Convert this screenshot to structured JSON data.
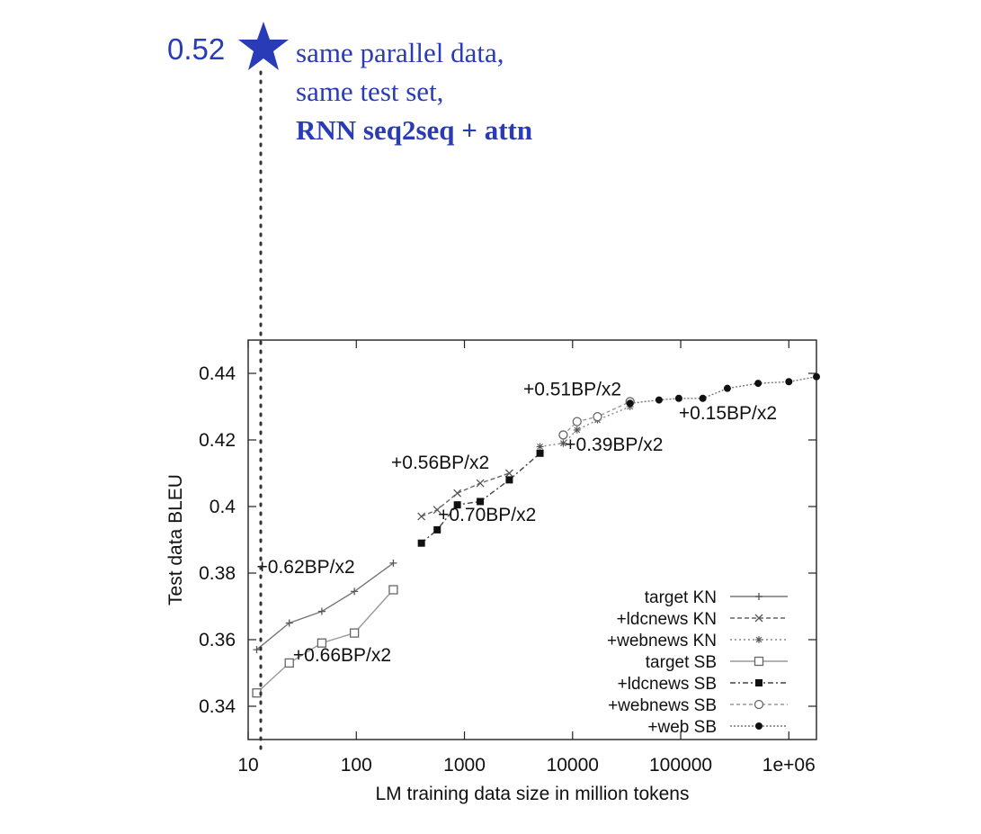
{
  "annotation": {
    "score": "0.52",
    "lines": [
      "same parallel data,",
      "same test set,",
      "RNN seq2seq + attn"
    ],
    "star_color": "#2a3bb8",
    "text_color": "#2a3bb8"
  },
  "chart_data": {
    "type": "line",
    "xlabel": "LM training data size in million tokens",
    "ylabel": "Test data BLEU",
    "xscale": "log",
    "xlim": [
      10,
      1800000
    ],
    "ylim": [
      0.33,
      0.45
    ],
    "xticks": [
      10,
      100,
      1000,
      10000,
      100000,
      1000000
    ],
    "xtick_labels": [
      "10",
      "100",
      "1000",
      "10000",
      "100000",
      "1e+06"
    ],
    "yticks": [
      0.34,
      0.36,
      0.38,
      0.4,
      0.42,
      0.44
    ],
    "ytick_labels": [
      "0.34",
      "0.36",
      "0.38",
      "0.4",
      "0.42",
      "0.44"
    ],
    "grid": false,
    "legend_position": "bottom-right",
    "series": [
      {
        "name": "target KN",
        "marker": "plus",
        "x": [
          12,
          24,
          48,
          96,
          220
        ],
        "y": [
          0.357,
          0.365,
          0.3685,
          0.3745,
          0.383
        ]
      },
      {
        "name": "+ldcnews KN",
        "marker": "cross",
        "x": [
          400,
          560,
          860,
          1400,
          2600
        ],
        "y": [
          0.397,
          0.399,
          0.404,
          0.407,
          0.41
        ]
      },
      {
        "name": "+webnews KN",
        "marker": "star",
        "x": [
          5000,
          8200,
          11000,
          17000,
          34000
        ],
        "y": [
          0.418,
          0.419,
          0.423,
          0.426,
          0.43
        ]
      },
      {
        "name": "target SB",
        "marker": "square-open",
        "x": [
          12,
          24,
          48,
          96,
          220
        ],
        "y": [
          0.344,
          0.353,
          0.359,
          0.362,
          0.375
        ]
      },
      {
        "name": "+ldcnews SB",
        "marker": "square-filled",
        "x": [
          400,
          560,
          860,
          1400,
          2600,
          5000
        ],
        "y": [
          0.389,
          0.393,
          0.4005,
          0.4015,
          0.408,
          0.416
        ]
      },
      {
        "name": "+webnews SB",
        "marker": "circle-open",
        "x": [
          8200,
          11000,
          17000,
          34000
        ],
        "y": [
          0.4215,
          0.4255,
          0.427,
          0.4315
        ]
      },
      {
        "name": "+web SB",
        "marker": "circle-filled",
        "x": [
          34000,
          63000,
          96000,
          160000,
          270000,
          520000,
          1000000,
          1800000
        ],
        "y": [
          0.431,
          0.432,
          0.4325,
          0.4325,
          0.4355,
          0.437,
          0.4375,
          0.439
        ]
      }
    ],
    "annotations": [
      {
        "text": "+0.62BP/x2",
        "x": 12,
        "y": 0.38
      },
      {
        "text": "+0.66BP/x2",
        "x": 26,
        "y": 0.3535
      },
      {
        "text": "+0.56BP/x2",
        "x": 210,
        "y": 0.4113
      },
      {
        "text": "+0.70BP/x2",
        "x": 570,
        "y": 0.3957
      },
      {
        "text": "+0.51BP/x2",
        "x": 3500,
        "y": 0.4334
      },
      {
        "text": "+0.39BP/x2",
        "x": 8500,
        "y": 0.4167
      },
      {
        "text": "+0.15BP/x2",
        "x": 96000,
        "y": 0.4262
      }
    ]
  }
}
